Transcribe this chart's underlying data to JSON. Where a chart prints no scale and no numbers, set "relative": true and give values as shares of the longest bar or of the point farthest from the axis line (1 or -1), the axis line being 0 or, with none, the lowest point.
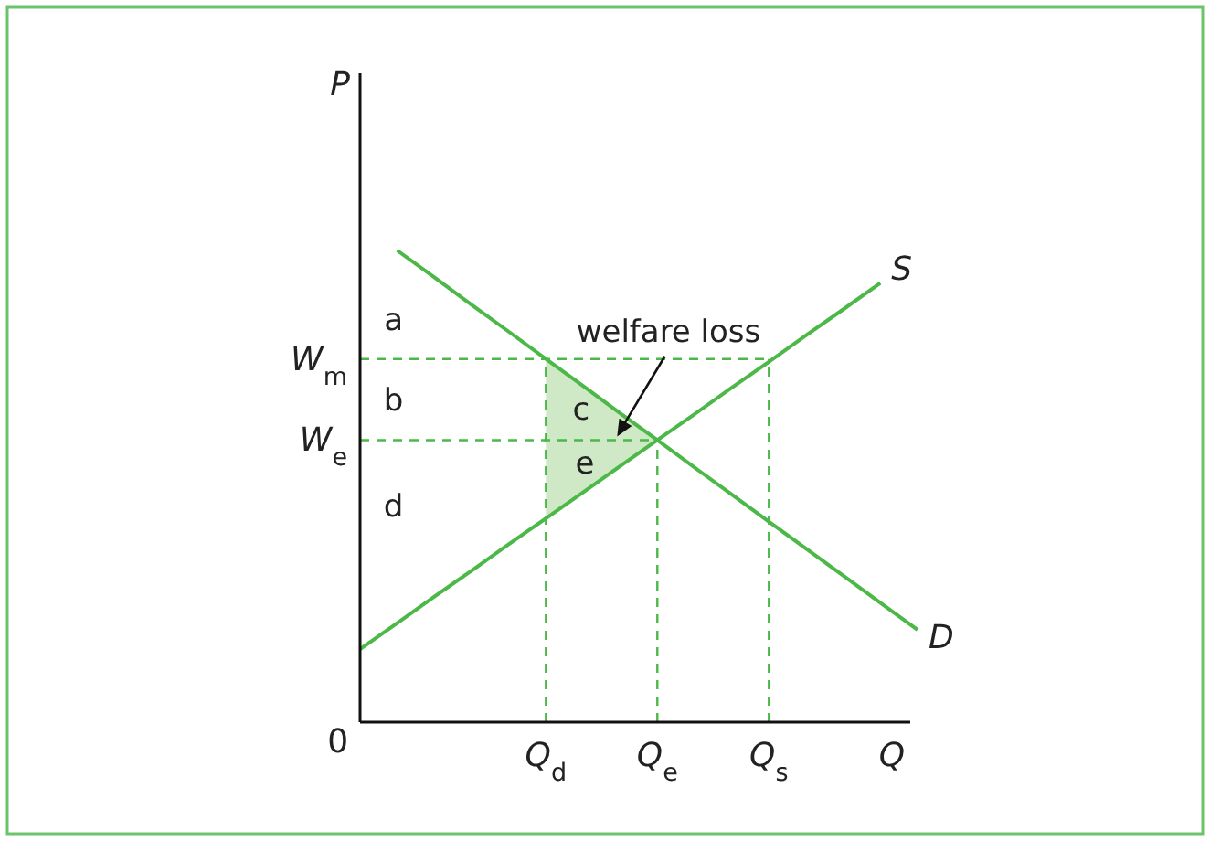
{
  "chart_data": {
    "type": "line",
    "relative": true,
    "xlabel": "Q",
    "ylabel": "P",
    "categories": [
      null,
      null,
      null,
      null,
      null,
      "Q$_{d}$",
      null,
      null,
      "Q$_{e}$",
      null,
      null,
      "Q$_{s}$",
      null,
      null,
      null,
      null
    ],
    "series": [
      {
        "name": "D",
        "color": "#4cb848",
        "values": [
          null,
          1.0,
          0.943,
          0.885,
          0.828,
          0.77,
          0.713,
          0.655,
          0.598,
          0.54,
          0.483,
          0.425,
          0.368,
          0.311,
          0.253,
          0.196
        ]
      },
      {
        "name": "S",
        "color": "#4cb848",
        "values": [
          0.155,
          0.21,
          0.266,
          0.321,
          0.377,
          0.432,
          0.487,
          0.543,
          0.598,
          0.653,
          0.709,
          0.764,
          0.82,
          0.875,
          0.931,
          null
        ]
      },
      {
        "type": "area",
        "color": "#cfe8c6",
        "values": [
          null,
          null,
          null,
          null,
          null,
          0.77,
          0.713,
          0.655,
          0.598,
          null,
          null,
          null,
          null,
          null,
          null,
          null
        ]
      },
      {
        "color": "#4cb848",
        "line_style": "dashed",
        "values": [
          0.77,
          0.77,
          0.77,
          0.77,
          0.77,
          0.77,
          0.77,
          0.77,
          0.77,
          0.77,
          0.77,
          0.77,
          null,
          null,
          null,
          null
        ]
      },
      {
        "color": "#4cb848",
        "line_style": "dashed",
        "values": [
          0.598,
          0.598,
          0.598,
          0.598,
          0.598,
          0.598,
          0.598,
          0.598,
          0.598,
          null,
          null,
          null,
          null,
          null,
          null,
          null
        ]
      },
      {
        "color": "#4cb848",
        "line_style": "dashed",
        "x": [
          "Q$_{d}$",
          "Q$_{d}$"
        ],
        "values": [
          0,
          0.77
        ]
      },
      {
        "color": "#4cb848",
        "line_style": "dashed",
        "x": [
          "Q$_{e}$",
          "Q$_{e}$"
        ],
        "values": [
          0,
          0.598
        ]
      },
      {
        "color": "#4cb848",
        "line_style": "dashed",
        "x": [
          "Q$_{s}$",
          "Q$_{s}$"
        ],
        "values": [
          0,
          0.77
        ]
      }
    ],
    "annotations": [
      "W$_{m}$",
      "W$_{e}$",
      "a",
      "b",
      "d",
      "c",
      "e",
      "welfare loss",
      "0"
    ]
  }
}
